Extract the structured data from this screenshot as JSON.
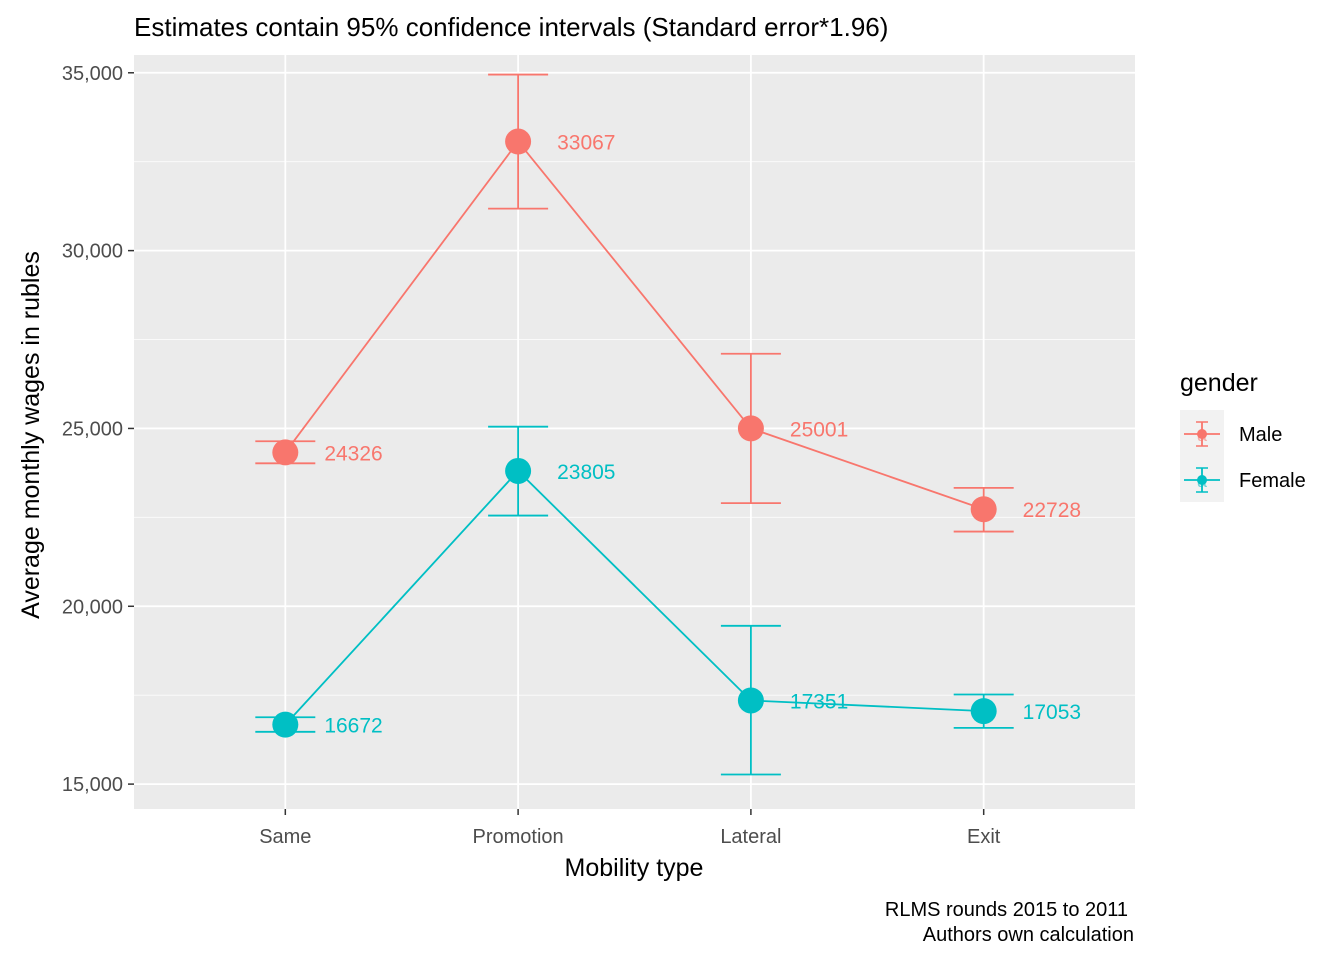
{
  "chart_data": {
    "type": "line",
    "title": "Estimates contain 95% confidence intervals (Standard error*1.96)",
    "xlabel": "Mobility type",
    "ylabel": "Average monthly wages in rubles",
    "categories": [
      "Same",
      "Promotion",
      "Lateral",
      "Exit"
    ],
    "yticks": [
      15000,
      20000,
      25000,
      30000,
      35000
    ],
    "ytick_labels": [
      "15,000",
      "20,000",
      "25,000",
      "30,000",
      "35,000"
    ],
    "ylim": [
      14300,
      35500
    ],
    "grid": true,
    "legend": {
      "title": "gender",
      "position": "right",
      "key_glyph": "a"
    },
    "series": [
      {
        "name": "Male",
        "color": "#F8766D",
        "values": [
          24326,
          33067,
          25001,
          22728
        ],
        "ci_low": [
          24020,
          31180,
          22900,
          22100
        ],
        "ci_high": [
          24640,
          34950,
          27100,
          23330
        ],
        "labels": [
          "24326",
          "33067",
          "25001",
          "22728"
        ]
      },
      {
        "name": "Female",
        "color": "#00BFC4",
        "values": [
          16672,
          23805,
          17351,
          17053
        ],
        "ci_low": [
          16470,
          22550,
          15270,
          16580
        ],
        "ci_high": [
          16880,
          25050,
          19450,
          17520
        ],
        "labels": [
          "16672",
          "23805",
          "17351",
          "17053"
        ]
      }
    ],
    "caption": [
      "RLMS rounds 2015 to 2011",
      "Authors own calculation"
    ]
  }
}
